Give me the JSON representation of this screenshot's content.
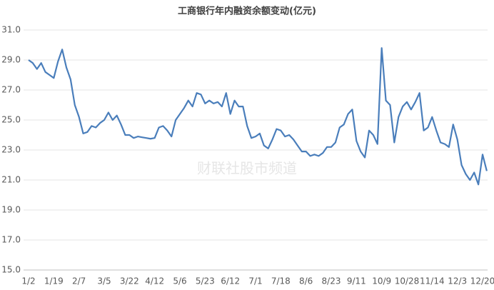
{
  "chart_data": {
    "type": "line",
    "title": "工商银行年内融资余额变动(亿元)",
    "watermark": "财联社股市频道",
    "categories": [
      "1/2",
      null,
      null,
      null,
      null,
      null,
      "1/19",
      null,
      null,
      null,
      null,
      null,
      "2/7",
      null,
      null,
      null,
      null,
      null,
      "3/5",
      null,
      null,
      null,
      null,
      null,
      "3/22",
      null,
      null,
      null,
      null,
      null,
      "4/12",
      null,
      null,
      null,
      null,
      null,
      "5/6",
      null,
      null,
      null,
      null,
      null,
      "5/23",
      null,
      null,
      null,
      null,
      null,
      "6/12",
      null,
      null,
      null,
      null,
      null,
      "7/1",
      null,
      null,
      null,
      null,
      null,
      "7/18",
      null,
      null,
      null,
      null,
      null,
      "8/6",
      null,
      null,
      null,
      null,
      null,
      "8/23",
      null,
      null,
      null,
      null,
      null,
      "9/11",
      null,
      null,
      null,
      null,
      null,
      "10/9",
      null,
      null,
      null,
      null,
      null,
      "10/28",
      null,
      null,
      null,
      null,
      null,
      "11/14",
      null,
      null,
      null,
      null,
      null,
      "12/3",
      null,
      null,
      null,
      null,
      null,
      "12/20",
      null
    ],
    "series": [
      {
        "color": "#4a7ebb",
        "values": [
          29.0,
          28.8,
          28.4,
          28.8,
          28.2,
          28.0,
          27.8,
          28.9,
          29.7,
          28.5,
          27.7,
          26.0,
          25.2,
          24.1,
          24.2,
          24.6,
          24.5,
          24.8,
          25.0,
          25.5,
          25.0,
          25.3,
          24.7,
          24.0,
          24.0,
          23.8,
          23.9,
          23.85,
          23.8,
          23.75,
          23.8,
          24.5,
          24.6,
          24.3,
          23.9,
          25.0,
          25.4,
          25.8,
          26.3,
          25.9,
          26.8,
          26.7,
          26.1,
          26.3,
          26.1,
          26.2,
          25.9,
          26.8,
          25.4,
          26.3,
          25.9,
          25.9,
          24.6,
          23.8,
          23.9,
          24.1,
          23.3,
          23.1,
          23.7,
          24.4,
          24.3,
          23.9,
          24.0,
          23.7,
          23.3,
          22.9,
          22.9,
          22.6,
          22.7,
          22.6,
          22.8,
          23.2,
          23.2,
          23.5,
          24.5,
          24.7,
          25.4,
          25.7,
          23.6,
          22.9,
          22.5,
          24.3,
          24.0,
          23.4,
          29.8,
          26.3,
          26.0,
          23.5,
          25.2,
          25.9,
          26.2,
          25.7,
          26.2,
          26.8,
          24.3,
          24.5,
          25.2,
          24.3,
          23.5,
          23.4,
          23.2,
          24.7,
          23.7,
          22.0,
          21.4,
          21.0,
          21.5,
          20.7,
          22.7,
          21.6
        ]
      }
    ],
    "ylim": [
      15,
      31
    ],
    "yticks": [
      {
        "value": 15,
        "label": "15.0"
      },
      {
        "value": 17,
        "label": "17.0"
      },
      {
        "value": 19,
        "label": "19.0"
      },
      {
        "value": 21,
        "label": "21.0"
      },
      {
        "value": 23,
        "label": "23.0"
      },
      {
        "value": 25,
        "label": "25.0"
      },
      {
        "value": 27,
        "label": "27.0"
      },
      {
        "value": 29,
        "label": "29.0"
      },
      {
        "value": 31,
        "label": "31.0"
      }
    ],
    "grid": true
  }
}
